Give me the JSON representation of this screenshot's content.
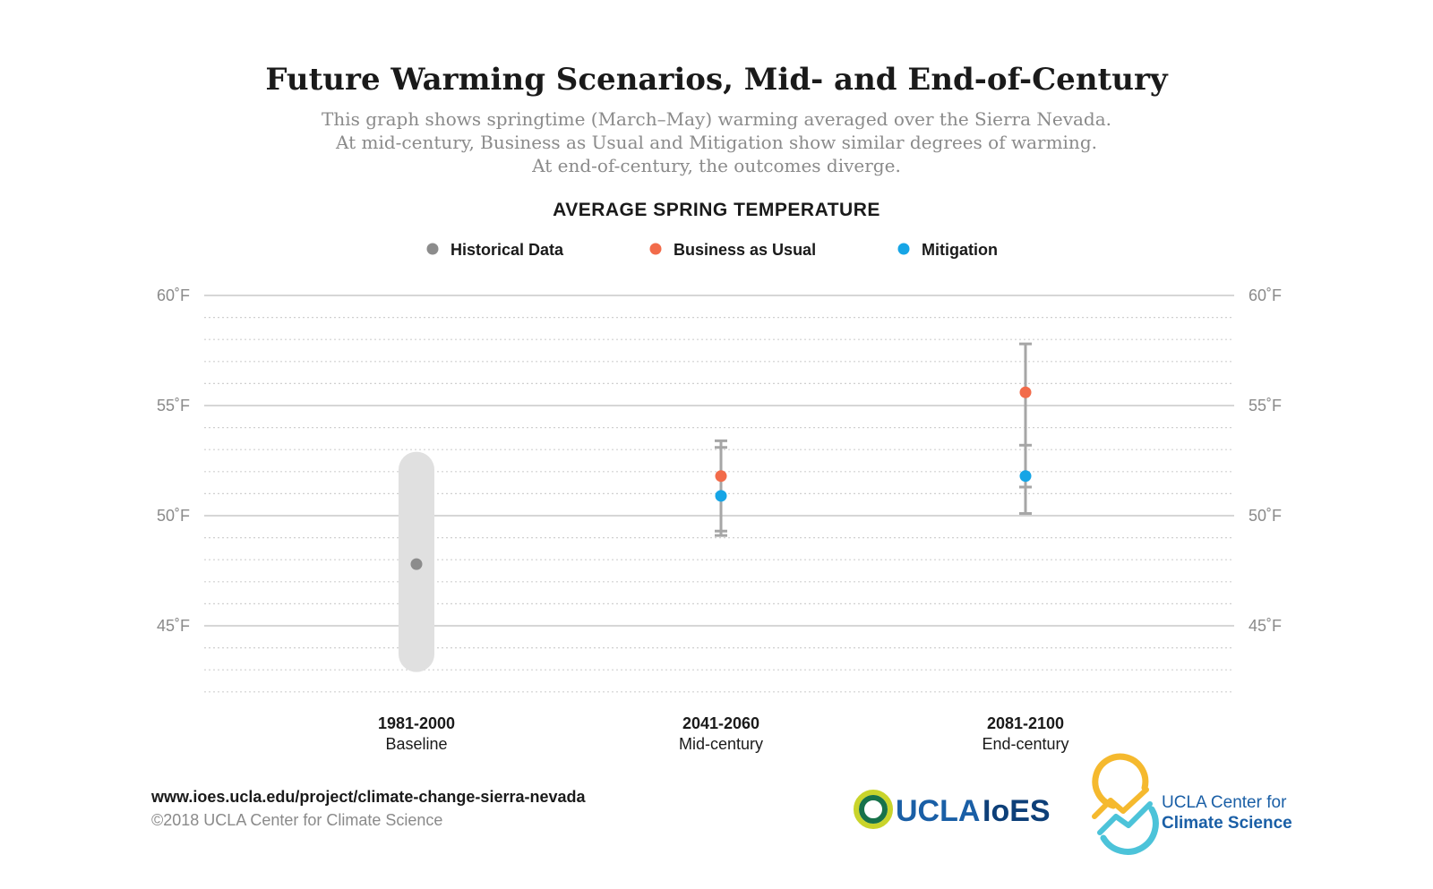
{
  "title": "Future Warming Scenarios, Mid- and End-of-Century",
  "subtitle_lines": [
    "This graph shows springtime (March–May) warming averaged over the Sierra Nevada.",
    "At mid-century, Business as Usual and Mitigation show similar degrees of warming.",
    "At end-of-century, the outcomes diverge."
  ],
  "chart_data": {
    "type": "scatter",
    "title": "AVERAGE SPRING TEMPERATURE",
    "ylabel": "",
    "unit": "°F",
    "ylim": [
      42,
      60
    ],
    "yticks": [
      {
        "value": 60,
        "label": "60˚F"
      },
      {
        "value": 55,
        "label": "55˚F"
      },
      {
        "value": 50,
        "label": "50˚F"
      },
      {
        "value": 45,
        "label": "45˚F"
      }
    ],
    "minor_grid_step": 1,
    "grid": true,
    "legend_position": "top",
    "categories": [
      {
        "period": "1981-2000",
        "label": "Baseline"
      },
      {
        "period": "2041-2060",
        "label": "Mid-century"
      },
      {
        "period": "2081-2100",
        "label": "End-century"
      }
    ],
    "series": [
      {
        "name": "Historical Data",
        "color": "#8c8c8c",
        "points": [
          {
            "category": 0,
            "value": 47.8,
            "range": [
              42.9,
              52.9
            ]
          }
        ]
      },
      {
        "name": "Business as Usual",
        "color": "#f26b4a",
        "points": [
          {
            "category": 1,
            "value": 51.8,
            "range": [
              49.3,
              53.4
            ]
          },
          {
            "category": 2,
            "value": 55.6,
            "range": [
              51.3,
              57.8
            ]
          }
        ]
      },
      {
        "name": "Mitigation",
        "color": "#16a5e6",
        "points": [
          {
            "category": 1,
            "value": 50.9,
            "range": [
              49.1,
              53.1
            ]
          },
          {
            "category": 2,
            "value": 51.8,
            "range": [
              50.1,
              53.2
            ]
          }
        ]
      }
    ]
  },
  "footer": {
    "url": "www.ioes.ucla.edu/project/climate-change-sierra-nevada",
    "copyright": "©2018 UCLA Center for Climate Science"
  },
  "logos": {
    "ioes": {
      "ucla": "UCLA",
      "ioes": "IoES"
    },
    "ccs": {
      "line1": "UCLA Center for",
      "line2": "Climate Science"
    }
  },
  "colors": {
    "grid_major": "#c8c8c8",
    "grid_minor": "#d0d0d0",
    "error_bar": "#a6a6a6",
    "baseline_band": "#e0e0e0"
  }
}
